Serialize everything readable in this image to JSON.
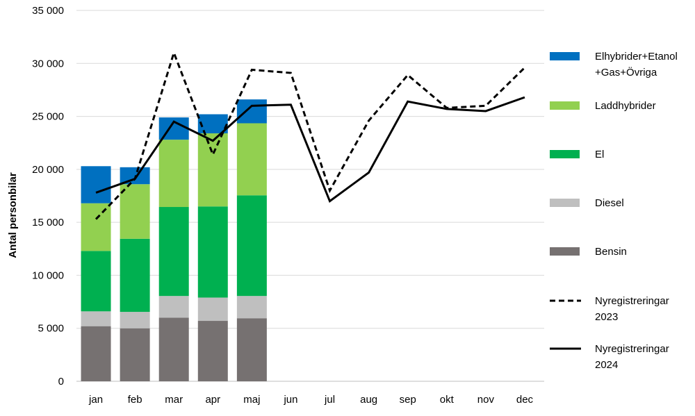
{
  "chart_data": {
    "type": "bar",
    "categories": [
      "jan",
      "feb",
      "mar",
      "apr",
      "maj",
      "jun",
      "jul",
      "aug",
      "sep",
      "okt",
      "nov",
      "dec"
    ],
    "ylabel": "Antal personbilar",
    "ylim": [
      0,
      35000
    ],
    "y_ticks": [
      0,
      5000,
      10000,
      15000,
      20000,
      25000,
      30000,
      35000
    ],
    "y_tick_labels": [
      "0",
      "5 000",
      "10 000",
      "15 000",
      "20 000",
      "25 000",
      "30 000",
      "35 000"
    ],
    "grid": "horizontal",
    "legend_position": "right",
    "stacked_series": [
      {
        "name": "Bensin",
        "color": "#767171",
        "values": [
          5200,
          5000,
          6000,
          5700,
          5950,
          null,
          null,
          null,
          null,
          null,
          null,
          null
        ]
      },
      {
        "name": "Diesel",
        "color": "#BFBFBF",
        "values": [
          1400,
          1550,
          2050,
          2200,
          2100,
          null,
          null,
          null,
          null,
          null,
          null,
          null
        ]
      },
      {
        "name": "El",
        "color": "#00B050",
        "values": [
          5700,
          6900,
          8400,
          8600,
          9500,
          null,
          null,
          null,
          null,
          null,
          null,
          null
        ]
      },
      {
        "name": "Laddhybrider",
        "color": "#92D050",
        "values": [
          4500,
          5150,
          6350,
          6900,
          6800,
          null,
          null,
          null,
          null,
          null,
          null,
          null
        ]
      },
      {
        "name": "Elhybrider+Etanol +Gas+Övriga",
        "color": "#0070C0",
        "values": [
          3500,
          1600,
          2100,
          1800,
          2250,
          null,
          null,
          null,
          null,
          null,
          null,
          null
        ]
      }
    ],
    "line_series": [
      {
        "name": "Nyregistreringar 2023",
        "color": "#000000",
        "dashed": true,
        "values": [
          15300,
          19100,
          31000,
          21400,
          29400,
          29100,
          18000,
          24600,
          28900,
          25800,
          26000,
          29600
        ]
      },
      {
        "name": "Nyregistreringar 2024",
        "color": "#000000",
        "dashed": false,
        "values": [
          17800,
          19100,
          24500,
          22700,
          26000,
          26100,
          17000,
          19700,
          26400,
          25700,
          25500,
          26800
        ]
      }
    ],
    "legend": [
      {
        "kind": "bar",
        "lines": [
          "Elhybrider+Etanol",
          "+Gas+Övriga"
        ],
        "color": "#0070C0"
      },
      {
        "kind": "bar",
        "lines": [
          "Laddhybrider"
        ],
        "color": "#92D050"
      },
      {
        "kind": "bar",
        "lines": [
          "El"
        ],
        "color": "#00B050"
      },
      {
        "kind": "bar",
        "lines": [
          "Diesel"
        ],
        "color": "#BFBFBF"
      },
      {
        "kind": "bar",
        "lines": [
          "Bensin"
        ],
        "color": "#767171"
      },
      {
        "kind": "dashed",
        "lines": [
          "Nyregistreringar",
          "2023"
        ],
        "color": "#000000"
      },
      {
        "kind": "solid",
        "lines": [
          "Nyregistreringar",
          "2024"
        ],
        "color": "#000000"
      }
    ]
  }
}
